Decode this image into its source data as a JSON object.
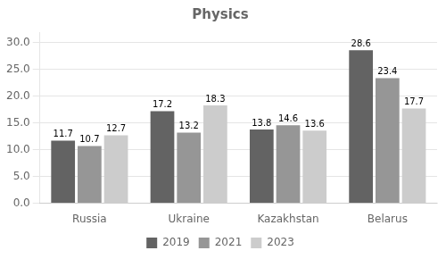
{
  "chart_data": {
    "type": "bar",
    "title": "Physics",
    "categories": [
      "Russia",
      "Ukraine",
      "Kazakhstan",
      "Belarus"
    ],
    "series": [
      {
        "name": "2019",
        "color": "#636363",
        "values": [
          11.7,
          17.2,
          13.8,
          28.6
        ]
      },
      {
        "name": "2021",
        "color": "#969696",
        "values": [
          10.7,
          13.2,
          14.6,
          23.4
        ]
      },
      {
        "name": "2023",
        "color": "#cccccc",
        "values": [
          12.7,
          18.3,
          13.6,
          17.7
        ]
      }
    ],
    "ylim": [
      0,
      32
    ],
    "yticks": [
      {
        "value": 0,
        "label": "0.0"
      },
      {
        "value": 5,
        "label": "5.0"
      },
      {
        "value": 10,
        "label": "10.0"
      },
      {
        "value": 15,
        "label": "15.0"
      },
      {
        "value": 20,
        "label": "20.0"
      },
      {
        "value": 25,
        "label": "25.0"
      },
      {
        "value": 30,
        "label": "30.0"
      }
    ],
    "grid": "y",
    "legend": "bottom",
    "data_labels": true
  }
}
